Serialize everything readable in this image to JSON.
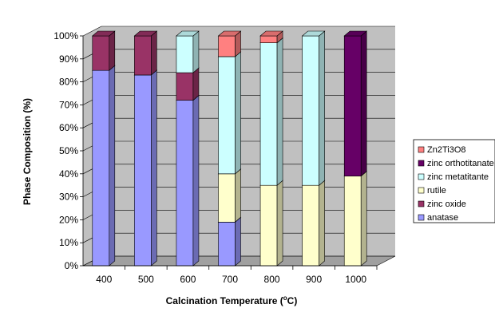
{
  "chart_data": {
    "type": "bar",
    "stacked": true,
    "three_d": true,
    "categories": [
      "400",
      "500",
      "600",
      "700",
      "800",
      "900",
      "1000"
    ],
    "series": [
      {
        "name": "anatase",
        "color": "#9999ff",
        "values": [
          85,
          83,
          72,
          19,
          0,
          0,
          0
        ]
      },
      {
        "name": "zinc oxide",
        "color": "#993366",
        "values": [
          15,
          17,
          12,
          0,
          0,
          0,
          0
        ]
      },
      {
        "name": "rutile",
        "color": "#ffffcc",
        "values": [
          0,
          0,
          0,
          21,
          35,
          35,
          39
        ]
      },
      {
        "name": "zinc metatitante",
        "color": "#ccffff",
        "values": [
          0,
          0,
          16,
          51,
          62,
          65,
          0
        ]
      },
      {
        "name": "zinc orthotitanate",
        "color": "#660066",
        "values": [
          0,
          0,
          0,
          0,
          0,
          0,
          61
        ]
      },
      {
        "name": "Zn2Ti3O8",
        "color": "#ff8080",
        "values": [
          0,
          0,
          0,
          9,
          3,
          0,
          0
        ]
      }
    ],
    "legend_order": [
      "Zn2Ti3O8",
      "zinc orthotitanate",
      "zinc metatitante",
      "rutile",
      "zinc oxide",
      "anatase"
    ],
    "legend_position": "right",
    "ylim": [
      0,
      100
    ],
    "yticks": [
      "0%",
      "10%",
      "20%",
      "30%",
      "40%",
      "50%",
      "60%",
      "70%",
      "80%",
      "90%",
      "100%"
    ],
    "ylabel": "Phase Composition (%)",
    "xlabel_main": "Calcination Temperature (",
    "xlabel_sup": "o",
    "xlabel_unit": "C)",
    "grid": true,
    "wall_color": "#c0c0c0"
  }
}
